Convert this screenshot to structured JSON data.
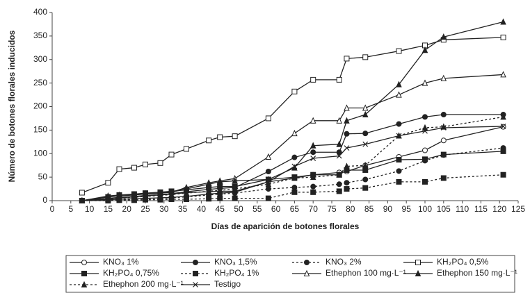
{
  "chart_data": {
    "type": "line",
    "x_label": "Días de aparición de botones florales",
    "y_label": "Número de botones florales inducidos",
    "x": [
      8,
      15,
      18,
      22,
      25,
      29,
      32,
      36,
      42,
      45,
      49,
      58,
      65,
      70,
      77,
      79,
      84,
      93,
      100,
      105,
      121
    ],
    "xlim": [
      0,
      125
    ],
    "xticks": [
      0,
      5,
      10,
      15,
      20,
      25,
      30,
      35,
      40,
      45,
      50,
      55,
      60,
      65,
      70,
      75,
      80,
      85,
      90,
      95,
      100,
      105,
      110,
      115,
      120,
      125
    ],
    "ylim": [
      0,
      400
    ],
    "yticks": [
      0,
      50,
      100,
      150,
      200,
      250,
      300,
      350,
      400
    ],
    "series": [
      {
        "name": "KNO₃ 1%",
        "color": "#222",
        "dash": "solid",
        "marker": "circle-open",
        "values": [
          0,
          2,
          3,
          4,
          5,
          6,
          7,
          9,
          14,
          16,
          18,
          40,
          48,
          55,
          60,
          62,
          75,
          93,
          107,
          128,
          157
        ]
      },
      {
        "name": "KNO₃ 1,5%",
        "color": "#222",
        "dash": "solid",
        "marker": "circle-filled",
        "values": [
          0,
          5,
          7,
          9,
          11,
          13,
          15,
          19,
          24,
          26,
          28,
          62,
          92,
          103,
          103,
          142,
          143,
          163,
          178,
          183,
          183
        ]
      },
      {
        "name": "KNO₃ 2%",
        "color": "#222",
        "dash": "dotted",
        "marker": "circle-filled",
        "values": [
          0,
          1,
          2,
          3,
          4,
          5,
          6,
          8,
          12,
          14,
          16,
          25,
          28,
          30,
          35,
          38,
          45,
          63,
          85,
          97,
          112
        ]
      },
      {
        "name": "KH₂PO₄ 0,5%",
        "color": "#222",
        "dash": "solid",
        "marker": "square-open",
        "values": [
          17,
          38,
          67,
          70,
          77,
          80,
          98,
          110,
          128,
          135,
          137,
          175,
          232,
          257,
          257,
          302,
          305,
          318,
          330,
          342,
          347
        ]
      },
      {
        "name": "KH₂PO₄ 0,75%",
        "color": "#222",
        "dash": "solid",
        "marker": "square-filled",
        "values": [
          0,
          8,
          12,
          14,
          16,
          18,
          20,
          23,
          28,
          30,
          30,
          45,
          50,
          55,
          55,
          65,
          65,
          87,
          88,
          98,
          105
        ]
      },
      {
        "name": "KH₂PO₄ 1%",
        "color": "#222",
        "dash": "dotted",
        "marker": "square-filled",
        "values": [
          0,
          0,
          1,
          1,
          2,
          2,
          3,
          3,
          4,
          5,
          5,
          5,
          18,
          18,
          20,
          25,
          27,
          40,
          40,
          48,
          55
        ]
      },
      {
        "name": "Ethephon 100 mg·L⁻¹",
        "color": "#222",
        "dash": "solid",
        "marker": "triangle-open",
        "values": [
          0,
          8,
          10,
          12,
          14,
          16,
          18,
          28,
          38,
          42,
          47,
          93,
          143,
          170,
          170,
          197,
          197,
          225,
          250,
          260,
          268
        ]
      },
      {
        "name": "Ethephon 150 mg·L⁻¹",
        "color": "#222",
        "dash": "solid",
        "marker": "triangle-filled",
        "values": [
          0,
          10,
          12,
          13,
          15,
          16,
          18,
          25,
          35,
          40,
          42,
          45,
          70,
          117,
          120,
          170,
          183,
          247,
          320,
          348,
          380
        ]
      },
      {
        "name": "Ethephon 200 mg·L⁻¹",
        "color": "#222",
        "dash": "dotted",
        "marker": "triangle-filled",
        "values": [
          0,
          3,
          5,
          7,
          9,
          11,
          13,
          16,
          20,
          22,
          25,
          35,
          48,
          50,
          55,
          73,
          75,
          138,
          155,
          157,
          178
        ]
      },
      {
        "name": "Testigo",
        "color": "#222",
        "dash": "solid",
        "marker": "x",
        "values": [
          0,
          4,
          6,
          8,
          10,
          12,
          14,
          17,
          19,
          20,
          20,
          40,
          73,
          90,
          95,
          112,
          120,
          138,
          148,
          155,
          158
        ]
      }
    ]
  }
}
